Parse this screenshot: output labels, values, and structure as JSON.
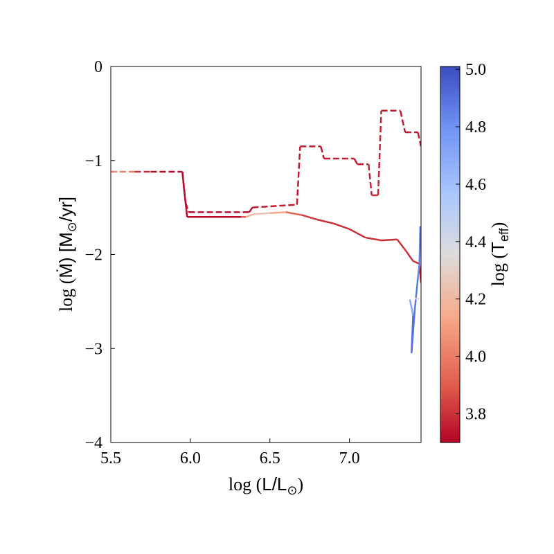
{
  "chart_data": {
    "type": "line",
    "xlabel": {
      "prefix": "log (",
      "main": "L/L",
      "sub": "⊙",
      "suffix": ")"
    },
    "ylabel": {
      "prefix": "log (",
      "main": "Ṁ",
      "suffix": ") [M",
      "sub": "⊙",
      "tail": "/yr]"
    },
    "xlim": [
      5.5,
      7.45
    ],
    "ylim": [
      -4,
      0
    ],
    "xticks": [
      5.5,
      6.0,
      6.5,
      7.0
    ],
    "xtick_labels": [
      "5.5",
      "6.0",
      "6.5",
      "7.0"
    ],
    "yticks": [
      0,
      -1,
      -2,
      -3,
      -4
    ],
    "ytick_labels": [
      "0",
      "−1",
      "−2",
      "−3",
      "−4"
    ],
    "grid": false,
    "colorbar": {
      "label": {
        "prefix": "log (",
        "main": "T",
        "sub": "eff",
        "suffix": ")"
      },
      "range": [
        3.7,
        5.01
      ],
      "ticks": [
        3.8,
        4.0,
        4.2,
        4.4,
        4.6,
        4.8,
        5.0
      ],
      "tick_labels": [
        "3.8",
        "4.0",
        "4.2",
        "4.4",
        "4.6",
        "4.8",
        "5.0"
      ],
      "colormap": "coolwarm_r"
    },
    "series": [
      {
        "style": "dashed",
        "points": [
          {
            "x": 5.5,
            "y": -1.12,
            "c": 4.15
          },
          {
            "x": 5.65,
            "y": -1.12,
            "c": 3.85
          },
          {
            "x": 5.75,
            "y": -1.12,
            "c": 3.72
          },
          {
            "x": 5.95,
            "y": -1.12,
            "c": 3.72
          },
          {
            "x": 5.97,
            "y": -1.45,
            "c": 3.72
          },
          {
            "x": 5.99,
            "y": -1.55,
            "c": 3.72
          },
          {
            "x": 6.37,
            "y": -1.55,
            "c": 3.72
          },
          {
            "x": 6.39,
            "y": -1.5,
            "c": 3.75
          },
          {
            "x": 6.67,
            "y": -1.47,
            "c": 3.75
          },
          {
            "x": 6.69,
            "y": -0.85,
            "c": 3.75
          },
          {
            "x": 6.82,
            "y": -0.85,
            "c": 3.75
          },
          {
            "x": 6.84,
            "y": -0.98,
            "c": 3.75
          },
          {
            "x": 7.03,
            "y": -0.98,
            "c": 3.75
          },
          {
            "x": 7.05,
            "y": -1.04,
            "c": 3.75
          },
          {
            "x": 7.12,
            "y": -1.04,
            "c": 3.75
          },
          {
            "x": 7.14,
            "y": -1.37,
            "c": 3.8
          },
          {
            "x": 7.18,
            "y": -1.37,
            "c": 3.8
          },
          {
            "x": 7.2,
            "y": -0.47,
            "c": 3.75
          },
          {
            "x": 7.32,
            "y": -0.47,
            "c": 3.75
          },
          {
            "x": 7.35,
            "y": -0.7,
            "c": 3.75
          },
          {
            "x": 7.43,
            "y": -0.7,
            "c": 3.75
          },
          {
            "x": 7.45,
            "y": -0.85,
            "c": 3.75
          }
        ]
      },
      {
        "style": "solid",
        "points": [
          {
            "x": 5.95,
            "y": -1.12,
            "c": 3.72
          },
          {
            "x": 5.96,
            "y": -1.3,
            "c": 3.72
          },
          {
            "x": 5.98,
            "y": -1.6,
            "c": 3.72
          },
          {
            "x": 6.32,
            "y": -1.6,
            "c": 3.72
          },
          {
            "x": 6.35,
            "y": -1.6,
            "c": 4.1
          },
          {
            "x": 6.4,
            "y": -1.57,
            "c": 4.25
          },
          {
            "x": 6.5,
            "y": -1.56,
            "c": 4.25
          },
          {
            "x": 6.6,
            "y": -1.55,
            "c": 4.0
          },
          {
            "x": 6.7,
            "y": -1.58,
            "c": 3.85
          },
          {
            "x": 6.8,
            "y": -1.63,
            "c": 3.8
          },
          {
            "x": 6.9,
            "y": -1.67,
            "c": 3.8
          },
          {
            "x": 7.0,
            "y": -1.73,
            "c": 3.8
          },
          {
            "x": 7.1,
            "y": -1.82,
            "c": 3.8
          },
          {
            "x": 7.2,
            "y": -1.85,
            "c": 3.8
          },
          {
            "x": 7.3,
            "y": -1.84,
            "c": 3.8
          },
          {
            "x": 7.35,
            "y": -1.95,
            "c": 3.8
          },
          {
            "x": 7.4,
            "y": -2.07,
            "c": 3.8
          },
          {
            "x": 7.44,
            "y": -2.1,
            "c": 3.8
          },
          {
            "x": 7.45,
            "y": -2.3,
            "c": 3.8
          }
        ]
      },
      {
        "style": "solid",
        "points": [
          {
            "x": 7.38,
            "y": -2.48,
            "c": 4.5
          },
          {
            "x": 7.4,
            "y": -2.65,
            "c": 4.9
          },
          {
            "x": 7.39,
            "y": -3.05,
            "c": 4.9
          },
          {
            "x": 7.41,
            "y": -2.6,
            "c": 4.9
          },
          {
            "x": 7.43,
            "y": -2.25,
            "c": 4.85
          },
          {
            "x": 7.44,
            "y": -2.1,
            "c": 4.85
          },
          {
            "x": 7.445,
            "y": -1.7,
            "c": 4.85
          }
        ]
      },
      {
        "style": "solid",
        "points": [
          {
            "x": 7.41,
            "y": -2.47,
            "c": 4.3
          },
          {
            "x": 7.44,
            "y": -2.47,
            "c": 4.35
          }
        ]
      }
    ]
  }
}
